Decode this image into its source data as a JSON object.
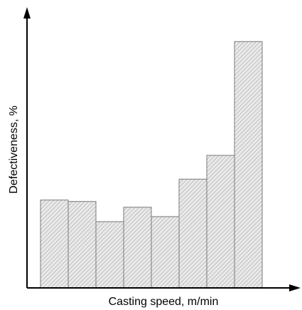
{
  "chart_data": {
    "type": "bar",
    "xlabel": "Casting speed, m/min",
    "ylabel": "Defectiveness, %",
    "values": [
      122,
      120,
      92,
      112,
      99,
      151,
      184,
      342
    ],
    "ylim": [
      0,
      370
    ],
    "grid": false,
    "legend": "none",
    "bar_fill": "hatched-light-gray",
    "axis_color": "#000000"
  }
}
